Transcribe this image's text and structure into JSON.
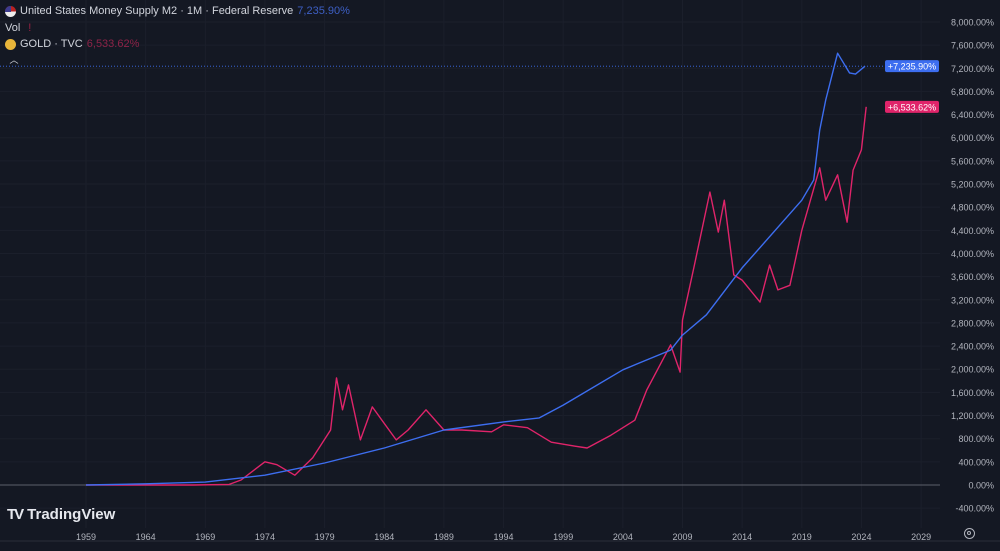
{
  "legend": {
    "main_title": "United States Money Supply M2 · 1M · Federal Reserve",
    "main_value": "7,235.90%",
    "vol_label": "Vol",
    "vol_value": "!",
    "compare_title": "GOLD · TVC",
    "compare_value": "6,533.62%",
    "collapse_icon": "chevron-up-icon"
  },
  "branding": {
    "logo_text": "TradingView"
  },
  "settings_icon": "gear-icon",
  "chart_data": {
    "type": "line",
    "xlabel": "",
    "ylabel": "",
    "xlim": [
      1953,
      2032
    ],
    "ylim": [
      -600,
      8200
    ],
    "y_scale": "percent",
    "grid": true,
    "x_ticks": [
      "1959",
      "1964",
      "1969",
      "1974",
      "1979",
      "1984",
      "1989",
      "1994",
      "1999",
      "2004",
      "2009",
      "2014",
      "2019",
      "2024",
      "2029"
    ],
    "y_ticks": [
      "8,000.00%",
      "7,600.00%",
      "7,200.00%",
      "6,800.00%",
      "6,400.00%",
      "6,000.00%",
      "5,600.00%",
      "5,200.00%",
      "4,800.00%",
      "4,400.00%",
      "4,000.00%",
      "3,600.00%",
      "3,200.00%",
      "2,800.00%",
      "2,400.00%",
      "2,000.00%",
      "1,600.00%",
      "1,200.00%",
      "800.00%",
      "400.00%",
      "0.00%",
      "-400.00%"
    ],
    "y_tick_values": [
      8000,
      7600,
      7200,
      6800,
      6400,
      6000,
      5600,
      5200,
      4800,
      4400,
      4000,
      3600,
      3200,
      2800,
      2400,
      2000,
      1600,
      1200,
      800,
      400,
      0,
      -400
    ],
    "series": [
      {
        "name": "United States Money Supply M2 · 1M · Federal Reserve",
        "color": "#3d6ef0",
        "last_label": "+7,235.90%",
        "last_value": 7235.9,
        "x": [
          1959,
          1964,
          1969,
          1974,
          1979,
          1984,
          1989,
          1994,
          1997,
          1999,
          2004,
          2008,
          2009,
          2011,
          2014,
          2019,
          2020,
          2020.5,
          2021,
          2022,
          2023,
          2023.5,
          2024.3
        ],
        "y": [
          0,
          20,
          50,
          170,
          380,
          640,
          950,
          1090,
          1160,
          1380,
          1990,
          2330,
          2590,
          2940,
          3750,
          4920,
          5270,
          6130,
          6650,
          7460,
          7120,
          7100,
          7235.9
        ]
      },
      {
        "name": "GOLD · TVC",
        "color": "#e0246a",
        "last_label": "+6,533.62%",
        "last_value": 6533.62,
        "x": [
          1959,
          1968,
          1971,
          1972,
          1974,
          1975,
          1976.5,
          1978,
          1979.5,
          1980,
          1980.5,
          1981,
          1982,
          1983,
          1985,
          1986,
          1987.5,
          1989,
          1990.5,
          1993,
          1994,
          1996,
          1998,
          2000,
          2001,
          2003,
          2005,
          2006,
          2008,
          2008.8,
          2009,
          2010,
          2011.3,
          2012,
          2012.5,
          2013.3,
          2014,
          2015.5,
          2016.3,
          2017,
          2018,
          2019,
          2020.5,
          2021,
          2022,
          2022.8,
          2023.3,
          2024,
          2024.4
        ],
        "y": [
          0,
          0,
          10,
          86,
          400,
          350,
          170,
          470,
          950,
          1850,
          1300,
          1730,
          780,
          1350,
          780,
          950,
          1300,
          950,
          950,
          920,
          1040,
          990,
          740,
          670,
          640,
          860,
          1120,
          1640,
          2420,
          1950,
          2850,
          3800,
          5060,
          4370,
          4920,
          3630,
          3540,
          3160,
          3800,
          3370,
          3450,
          4400,
          5480,
          4920,
          5360,
          4540,
          5440,
          5790,
          6533.62
        ]
      }
    ]
  }
}
